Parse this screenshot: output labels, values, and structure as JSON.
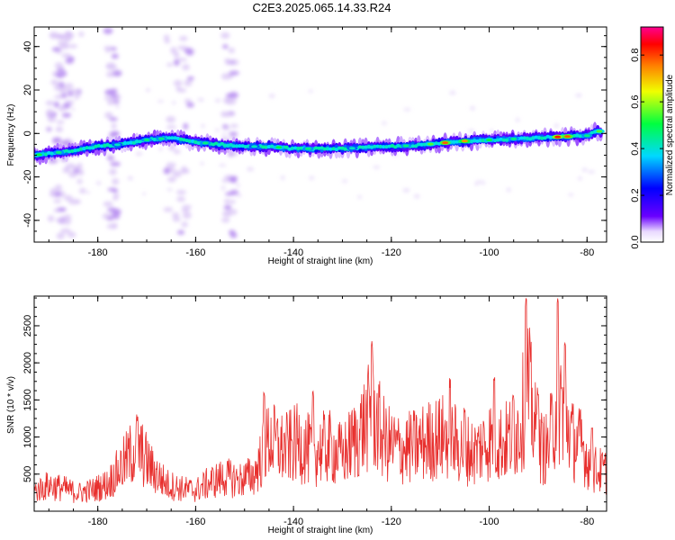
{
  "title": "C2E3.2025.065.14.33.R24",
  "colors": {
    "snr_line": "#e8302e",
    "axes": "#000000"
  },
  "chart_data": [
    {
      "type": "heatmap",
      "xlabel": "Height of straight line (km)",
      "ylabel": "Frequency (Hz)",
      "xlim": [
        -193,
        -76
      ],
      "ylim": [
        -50,
        49
      ],
      "x_ticks": [
        -180,
        -160,
        -140,
        -120,
        -100,
        -80
      ],
      "y_ticks": [
        -40,
        -20,
        0,
        20,
        40
      ],
      "colorbar": {
        "label": "Normalized spectral amplitude",
        "range": [
          0.0,
          0.92
        ],
        "ticks": [
          0.0,
          0.2,
          0.4,
          0.6,
          0.8
        ],
        "tick_labels": [
          "0.0",
          "0.2",
          "0.4",
          "0.6",
          "0.8"
        ],
        "colormap": "rainbow (purple-blue-cyan-green-yellow-red-magenta)"
      },
      "ridge": {
        "x": [
          -193,
          -185,
          -180,
          -175,
          -170,
          -165,
          -160,
          -155,
          -150,
          -145,
          -140,
          -135,
          -130,
          -125,
          -120,
          -115,
          -110,
          -105,
          -100,
          -95,
          -90,
          -85,
          -80,
          -78
        ],
        "y": [
          -10,
          -8,
          -6,
          -5,
          -3,
          -2,
          -4,
          -5,
          -6,
          -6,
          -7,
          -7,
          -7,
          -6.5,
          -6,
          -5.5,
          -4.5,
          -3.5,
          -3,
          -2.5,
          -2,
          -1.5,
          -1,
          1
        ]
      },
      "grid": false
    },
    {
      "type": "line",
      "xlabel": "Height of straight line (km)",
      "ylabel": "SNR (10 * v/v)",
      "xlim": [
        -193,
        -76
      ],
      "ylim": [
        0,
        2900
      ],
      "x_ticks": [
        -180,
        -160,
        -140,
        -120,
        -100,
        -80
      ],
      "y_ticks": [
        500,
        1000,
        1500,
        2000,
        2500
      ],
      "series": [
        {
          "x": [
            -193,
            -190,
            -187,
            -184,
            -181,
            -178,
            -175,
            -172,
            -169,
            -166,
            -163,
            -160,
            -157,
            -154,
            -151,
            -148,
            -145,
            -142,
            -139,
            -136,
            -133,
            -130,
            -127,
            -124,
            -121,
            -118,
            -115,
            -112,
            -109,
            -106,
            -103,
            -100,
            -97,
            -94,
            -92,
            -90,
            -88,
            -86,
            -85,
            -83,
            -81,
            -79,
            -76
          ],
          "y": [
            300,
            400,
            350,
            280,
            330,
            420,
            700,
            1000,
            650,
            420,
            350,
            320,
            450,
            520,
            480,
            560,
            1100,
            950,
            1050,
            900,
            1000,
            850,
            1150,
            1500,
            1050,
            950,
            1000,
            1100,
            1150,
            1000,
            900,
            1100,
            1050,
            1250,
            1900,
            1000,
            950,
            1700,
            1650,
            1100,
            1000,
            650,
            600
          ]
        }
      ],
      "grid": false
    }
  ]
}
